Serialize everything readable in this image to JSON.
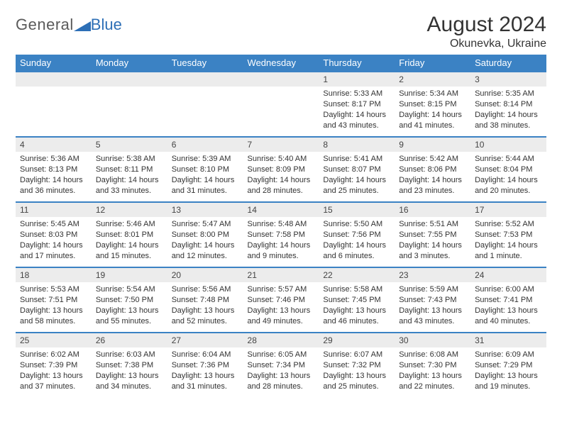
{
  "brand": {
    "name_part1": "General",
    "name_part2": "Blue"
  },
  "header": {
    "title": "August 2024",
    "location": "Okunevka, Ukraine"
  },
  "style": {
    "header_bg": "#3b82c4",
    "header_text": "#ffffff",
    "daynum_bg": "#ececec",
    "daynum_border": "#3b82c4",
    "body_text": "#333333",
    "page_bg": "#ffffff",
    "logo_gray": "#5a5a5a",
    "logo_blue": "#2d6fb6",
    "title_fontsize": 30,
    "subtitle_fontsize": 16,
    "weekday_fontsize": 13,
    "cell_fontsize": 11
  },
  "weekdays": [
    "Sunday",
    "Monday",
    "Tuesday",
    "Wednesday",
    "Thursday",
    "Friday",
    "Saturday"
  ],
  "weeks": [
    [
      null,
      null,
      null,
      null,
      {
        "n": "1",
        "sunrise": "Sunrise: 5:33 AM",
        "sunset": "Sunset: 8:17 PM",
        "daylight1": "Daylight: 14 hours",
        "daylight2": "and 43 minutes."
      },
      {
        "n": "2",
        "sunrise": "Sunrise: 5:34 AM",
        "sunset": "Sunset: 8:15 PM",
        "daylight1": "Daylight: 14 hours",
        "daylight2": "and 41 minutes."
      },
      {
        "n": "3",
        "sunrise": "Sunrise: 5:35 AM",
        "sunset": "Sunset: 8:14 PM",
        "daylight1": "Daylight: 14 hours",
        "daylight2": "and 38 minutes."
      }
    ],
    [
      {
        "n": "4",
        "sunrise": "Sunrise: 5:36 AM",
        "sunset": "Sunset: 8:13 PM",
        "daylight1": "Daylight: 14 hours",
        "daylight2": "and 36 minutes."
      },
      {
        "n": "5",
        "sunrise": "Sunrise: 5:38 AM",
        "sunset": "Sunset: 8:11 PM",
        "daylight1": "Daylight: 14 hours",
        "daylight2": "and 33 minutes."
      },
      {
        "n": "6",
        "sunrise": "Sunrise: 5:39 AM",
        "sunset": "Sunset: 8:10 PM",
        "daylight1": "Daylight: 14 hours",
        "daylight2": "and 31 minutes."
      },
      {
        "n": "7",
        "sunrise": "Sunrise: 5:40 AM",
        "sunset": "Sunset: 8:09 PM",
        "daylight1": "Daylight: 14 hours",
        "daylight2": "and 28 minutes."
      },
      {
        "n": "8",
        "sunrise": "Sunrise: 5:41 AM",
        "sunset": "Sunset: 8:07 PM",
        "daylight1": "Daylight: 14 hours",
        "daylight2": "and 25 minutes."
      },
      {
        "n": "9",
        "sunrise": "Sunrise: 5:42 AM",
        "sunset": "Sunset: 8:06 PM",
        "daylight1": "Daylight: 14 hours",
        "daylight2": "and 23 minutes."
      },
      {
        "n": "10",
        "sunrise": "Sunrise: 5:44 AM",
        "sunset": "Sunset: 8:04 PM",
        "daylight1": "Daylight: 14 hours",
        "daylight2": "and 20 minutes."
      }
    ],
    [
      {
        "n": "11",
        "sunrise": "Sunrise: 5:45 AM",
        "sunset": "Sunset: 8:03 PM",
        "daylight1": "Daylight: 14 hours",
        "daylight2": "and 17 minutes."
      },
      {
        "n": "12",
        "sunrise": "Sunrise: 5:46 AM",
        "sunset": "Sunset: 8:01 PM",
        "daylight1": "Daylight: 14 hours",
        "daylight2": "and 15 minutes."
      },
      {
        "n": "13",
        "sunrise": "Sunrise: 5:47 AM",
        "sunset": "Sunset: 8:00 PM",
        "daylight1": "Daylight: 14 hours",
        "daylight2": "and 12 minutes."
      },
      {
        "n": "14",
        "sunrise": "Sunrise: 5:48 AM",
        "sunset": "Sunset: 7:58 PM",
        "daylight1": "Daylight: 14 hours",
        "daylight2": "and 9 minutes."
      },
      {
        "n": "15",
        "sunrise": "Sunrise: 5:50 AM",
        "sunset": "Sunset: 7:56 PM",
        "daylight1": "Daylight: 14 hours",
        "daylight2": "and 6 minutes."
      },
      {
        "n": "16",
        "sunrise": "Sunrise: 5:51 AM",
        "sunset": "Sunset: 7:55 PM",
        "daylight1": "Daylight: 14 hours",
        "daylight2": "and 3 minutes."
      },
      {
        "n": "17",
        "sunrise": "Sunrise: 5:52 AM",
        "sunset": "Sunset: 7:53 PM",
        "daylight1": "Daylight: 14 hours",
        "daylight2": "and 1 minute."
      }
    ],
    [
      {
        "n": "18",
        "sunrise": "Sunrise: 5:53 AM",
        "sunset": "Sunset: 7:51 PM",
        "daylight1": "Daylight: 13 hours",
        "daylight2": "and 58 minutes."
      },
      {
        "n": "19",
        "sunrise": "Sunrise: 5:54 AM",
        "sunset": "Sunset: 7:50 PM",
        "daylight1": "Daylight: 13 hours",
        "daylight2": "and 55 minutes."
      },
      {
        "n": "20",
        "sunrise": "Sunrise: 5:56 AM",
        "sunset": "Sunset: 7:48 PM",
        "daylight1": "Daylight: 13 hours",
        "daylight2": "and 52 minutes."
      },
      {
        "n": "21",
        "sunrise": "Sunrise: 5:57 AM",
        "sunset": "Sunset: 7:46 PM",
        "daylight1": "Daylight: 13 hours",
        "daylight2": "and 49 minutes."
      },
      {
        "n": "22",
        "sunrise": "Sunrise: 5:58 AM",
        "sunset": "Sunset: 7:45 PM",
        "daylight1": "Daylight: 13 hours",
        "daylight2": "and 46 minutes."
      },
      {
        "n": "23",
        "sunrise": "Sunrise: 5:59 AM",
        "sunset": "Sunset: 7:43 PM",
        "daylight1": "Daylight: 13 hours",
        "daylight2": "and 43 minutes."
      },
      {
        "n": "24",
        "sunrise": "Sunrise: 6:00 AM",
        "sunset": "Sunset: 7:41 PM",
        "daylight1": "Daylight: 13 hours",
        "daylight2": "and 40 minutes."
      }
    ],
    [
      {
        "n": "25",
        "sunrise": "Sunrise: 6:02 AM",
        "sunset": "Sunset: 7:39 PM",
        "daylight1": "Daylight: 13 hours",
        "daylight2": "and 37 minutes."
      },
      {
        "n": "26",
        "sunrise": "Sunrise: 6:03 AM",
        "sunset": "Sunset: 7:38 PM",
        "daylight1": "Daylight: 13 hours",
        "daylight2": "and 34 minutes."
      },
      {
        "n": "27",
        "sunrise": "Sunrise: 6:04 AM",
        "sunset": "Sunset: 7:36 PM",
        "daylight1": "Daylight: 13 hours",
        "daylight2": "and 31 minutes."
      },
      {
        "n": "28",
        "sunrise": "Sunrise: 6:05 AM",
        "sunset": "Sunset: 7:34 PM",
        "daylight1": "Daylight: 13 hours",
        "daylight2": "and 28 minutes."
      },
      {
        "n": "29",
        "sunrise": "Sunrise: 6:07 AM",
        "sunset": "Sunset: 7:32 PM",
        "daylight1": "Daylight: 13 hours",
        "daylight2": "and 25 minutes."
      },
      {
        "n": "30",
        "sunrise": "Sunrise: 6:08 AM",
        "sunset": "Sunset: 7:30 PM",
        "daylight1": "Daylight: 13 hours",
        "daylight2": "and 22 minutes."
      },
      {
        "n": "31",
        "sunrise": "Sunrise: 6:09 AM",
        "sunset": "Sunset: 7:29 PM",
        "daylight1": "Daylight: 13 hours",
        "daylight2": "and 19 minutes."
      }
    ]
  ]
}
